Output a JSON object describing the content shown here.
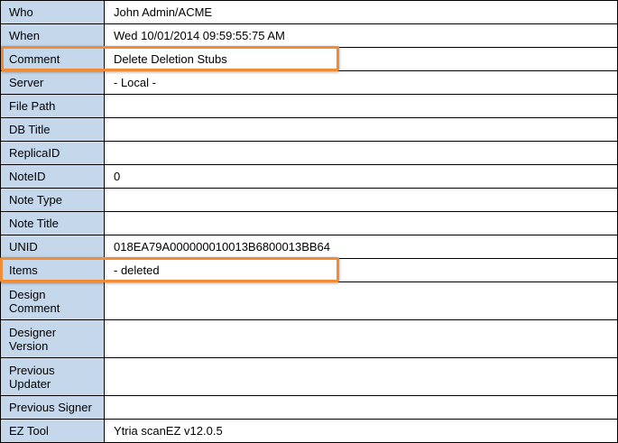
{
  "rows": [
    {
      "label": "Who",
      "value": "John Admin/ACME"
    },
    {
      "label": "When",
      "value": "Wed 10/01/2014 09:59:55:75 AM"
    },
    {
      "label": "Comment",
      "value": "Delete Deletion Stubs",
      "highlighted": true
    },
    {
      "label": "Server",
      "value": "- Local -"
    },
    {
      "label": "File Path",
      "value": ""
    },
    {
      "label": "DB Title",
      "value": ""
    },
    {
      "label": "ReplicaID",
      "value": ""
    },
    {
      "label": "NoteID",
      "value": "0"
    },
    {
      "label": "Note Type",
      "value": ""
    },
    {
      "label": "Note Title",
      "value": ""
    },
    {
      "label": "UNID",
      "value": "018EA79A000000010013B6800013BB64"
    },
    {
      "label": "Items",
      "value": " - deleted",
      "highlighted": true
    },
    {
      "label": "Design Comment",
      "value": ""
    },
    {
      "label": "Designer Version",
      "value": ""
    },
    {
      "label": "Previous Updater",
      "value": ""
    },
    {
      "label": "Previous Signer",
      "value": ""
    },
    {
      "label": "EZ Tool",
      "value": "Ytria scanEZ v12.0.5"
    }
  ],
  "colors": {
    "label_bg": "#c5d7ea",
    "highlight": "#ef8c35"
  }
}
